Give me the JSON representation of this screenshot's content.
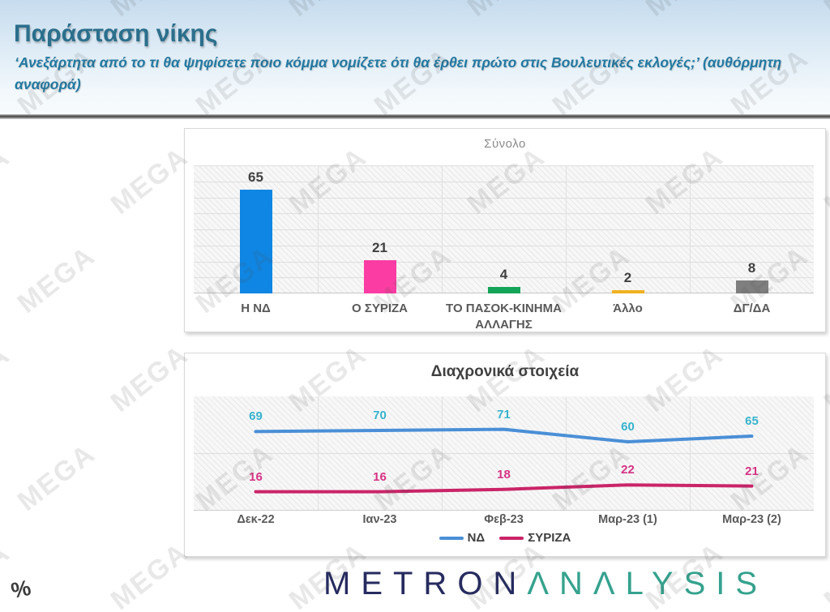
{
  "header": {
    "title": "Παράσταση νίκης",
    "subtitle": "‘Ανεξάρτητα από το τι θα ψηφίσετε ποιο κόμμα νομίζετε ότι θα έρθει πρώτο στις Βουλευτικές εκλογές;’ (αυθόρμητη αναφορά)"
  },
  "watermark": {
    "text": "MEGA"
  },
  "percent_symbol": "%",
  "footer": {
    "logo_metron": "METRON",
    "logo_analysis": "ΛNΛLYSIS",
    "metron_color": "#262b5f",
    "analysis_color": "#35a28e"
  },
  "chart_data": [
    {
      "type": "bar",
      "title": "Σύνολο",
      "categories": [
        "Η ΝΔ",
        "Ο ΣΥΡΙΖΑ",
        "ΤΟ ΠΑΣΟΚ-ΚΙΝΗΜΑ ΑΛΛΑΓΗΣ",
        "Άλλο",
        "ΔΓ/ΔΑ"
      ],
      "values": [
        65,
        21,
        4,
        2,
        8
      ],
      "colors": [
        "#0f86e3",
        "#fb3da3",
        "#14a457",
        "#efb220",
        "#7f7f7f"
      ],
      "ylim": [
        0,
        80
      ],
      "gridline_step": 10,
      "grid": true,
      "hatched_background": true,
      "data_labels": true,
      "label_color": "#404040"
    },
    {
      "type": "line",
      "title": "Διαχρονικά στοιχεία",
      "categories": [
        "Δεκ-22",
        "Ιαν-23",
        "Φεβ-23",
        "Μαρ-23 (1)",
        "Μαρ-23 (2)"
      ],
      "series": [
        {
          "name": "ΝΔ",
          "values": [
            69,
            70,
            71,
            60,
            65
          ],
          "line_color": "#4a8fd7",
          "label_color": "#36b3cd"
        },
        {
          "name": "ΣΥΡΙΖΑ",
          "values": [
            16,
            16,
            18,
            22,
            21
          ],
          "line_color": "#ca2468",
          "label_color": "#d63384"
        }
      ],
      "ylim": [
        0,
        100
      ],
      "gridline_step": 50,
      "grid": true,
      "hatched_background": true,
      "data_labels": true,
      "legend_position": "bottom"
    }
  ]
}
